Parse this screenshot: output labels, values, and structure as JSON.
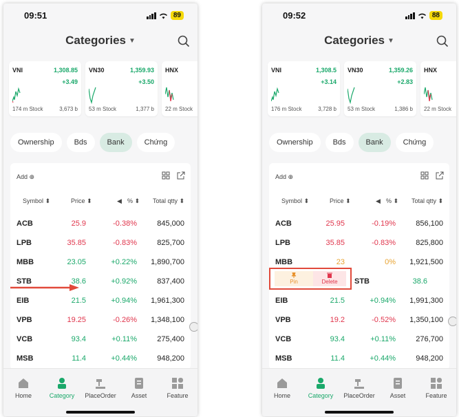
{
  "left": {
    "status": {
      "time": "09:51",
      "battery": "89"
    },
    "title": "Categories",
    "indices": [
      {
        "name": "VNI",
        "value": "1,308.85",
        "change": "+3.49",
        "volume": "174 m Stock",
        "value2": "3,673 b"
      },
      {
        "name": "VN30",
        "value": "1,359.93",
        "change": "+3.50",
        "volume": "53 m Stock",
        "value2": "1,377 b"
      },
      {
        "name": "HNX",
        "value": "",
        "change": "",
        "volume": "22 m Stock",
        "value2": ""
      }
    ],
    "tabs": [
      "Ownership",
      "Bds",
      "Bank",
      "Chứng"
    ],
    "active_tab": "Bank",
    "add_label": "Add ⊕",
    "columns": [
      "Symbol ⬍",
      "Price ⬍",
      "◀",
      "% ⬍",
      "Total qtty ⬍"
    ],
    "rows": [
      {
        "symbol": "ACB",
        "price": "25.9",
        "pct": "-0.38%",
        "qty": "845,000",
        "color": "red"
      },
      {
        "symbol": "LPB",
        "price": "35.85",
        "pct": "-0.83%",
        "qty": "825,700",
        "color": "red"
      },
      {
        "symbol": "MBB",
        "price": "23.05",
        "pct": "+0.22%",
        "qty": "1,890,700",
        "color": "green"
      },
      {
        "symbol": "STB",
        "price": "38.6",
        "pct": "+0.92%",
        "qty": "837,400",
        "color": "green"
      },
      {
        "symbol": "EIB",
        "price": "21.5",
        "pct": "+0.94%",
        "qty": "1,961,300",
        "color": "green"
      },
      {
        "symbol": "VPB",
        "price": "19.25",
        "pct": "-0.26%",
        "qty": "1,348,100",
        "color": "red"
      },
      {
        "symbol": "VCB",
        "price": "93.4",
        "pct": "+0.11%",
        "qty": "275,400",
        "color": "green"
      },
      {
        "symbol": "MSB",
        "price": "11.4",
        "pct": "+0.44%",
        "qty": "948,200",
        "color": "green"
      }
    ],
    "nav": [
      "Home",
      "Category",
      "PlaceOrder",
      "Asset",
      "Feature"
    ]
  },
  "right": {
    "status": {
      "time": "09:52",
      "battery": "88"
    },
    "title": "Categories",
    "indices": [
      {
        "name": "VNI",
        "value": "1,308.5",
        "change": "+3.14",
        "volume": "176 m Stock",
        "value2": "3,728 b"
      },
      {
        "name": "VN30",
        "value": "1,359.26",
        "change": "+2.83",
        "volume": "53 m Stock",
        "value2": "1,386 b"
      },
      {
        "name": "HNX",
        "value": "",
        "change": "",
        "volume": "22 m Stock",
        "value2": ""
      }
    ],
    "tabs": [
      "Ownership",
      "Bds",
      "Bank",
      "Chứng"
    ],
    "active_tab": "Bank",
    "add_label": "Add ⊕",
    "columns": [
      "Symbol ⬍",
      "Price ⬍",
      "◀",
      "% ⬍",
      "Total qtty ⬍"
    ],
    "rows": [
      {
        "symbol": "ACB",
        "price": "25.95",
        "pct": "-0.19%",
        "qty": "856,100",
        "color": "red"
      },
      {
        "symbol": "LPB",
        "price": "35.85",
        "pct": "-0.83%",
        "qty": "825,800",
        "color": "red"
      },
      {
        "symbol": "MBB",
        "price": "23",
        "pct": "0%",
        "qty": "1,921,500",
        "color": "orange"
      },
      {
        "symbol": "STB",
        "price": "38.6",
        "pct": "",
        "qty": "",
        "color": "green"
      },
      {
        "symbol": "EIB",
        "price": "21.5",
        "pct": "+0.94%",
        "qty": "1,991,300",
        "color": "green"
      },
      {
        "symbol": "VPB",
        "price": "19.2",
        "pct": "-0.52%",
        "qty": "1,350,100",
        "color": "red"
      },
      {
        "symbol": "VCB",
        "price": "93.4",
        "pct": "+0.11%",
        "qty": "276,700",
        "color": "green"
      },
      {
        "symbol": "MSB",
        "price": "11.4",
        "pct": "+0.44%",
        "qty": "948,200",
        "color": "green"
      }
    ],
    "swipe": {
      "pin": "Pin",
      "delete": "Delete"
    },
    "nav": [
      "Home",
      "Category",
      "PlaceOrder",
      "Asset",
      "Feature"
    ]
  },
  "colors": {
    "up": "#1aa86a",
    "down": "#e0354c",
    "ref": "#e8a331",
    "accent": "#1aa86a",
    "annotation": "#e1493a"
  }
}
